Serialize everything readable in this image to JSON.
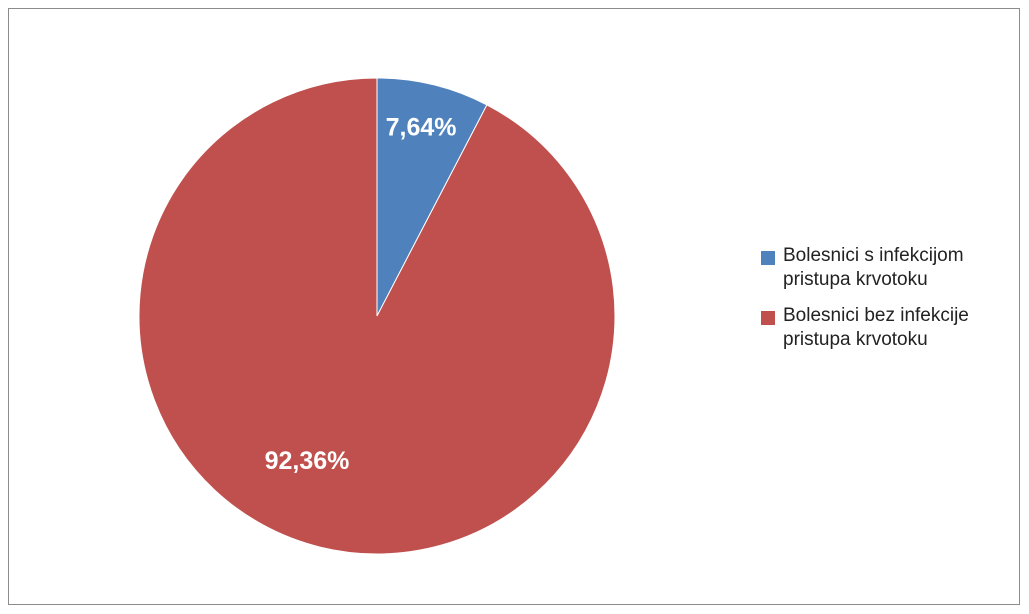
{
  "chart_data": {
    "type": "pie",
    "categories": [
      "Bolesnici s infekcijom pristupa krvotoku",
      "Bolesnici bez infekcije pristupa krvotoku"
    ],
    "values": [
      7.64,
      92.36
    ],
    "data_labels": [
      "7,64%",
      "92,36%"
    ],
    "colors": [
      "#4f81bd",
      "#c0504d"
    ],
    "legend_position": "right",
    "start_angle": "top, clockwise"
  },
  "legend": {
    "items": [
      {
        "label": "Bolesnici s infekcijom pristupa krvotoku",
        "color": "#4f81bd"
      },
      {
        "label": "Bolesnici bez infekcije pristupa krvotoku",
        "color": "#c0504d"
      }
    ]
  }
}
